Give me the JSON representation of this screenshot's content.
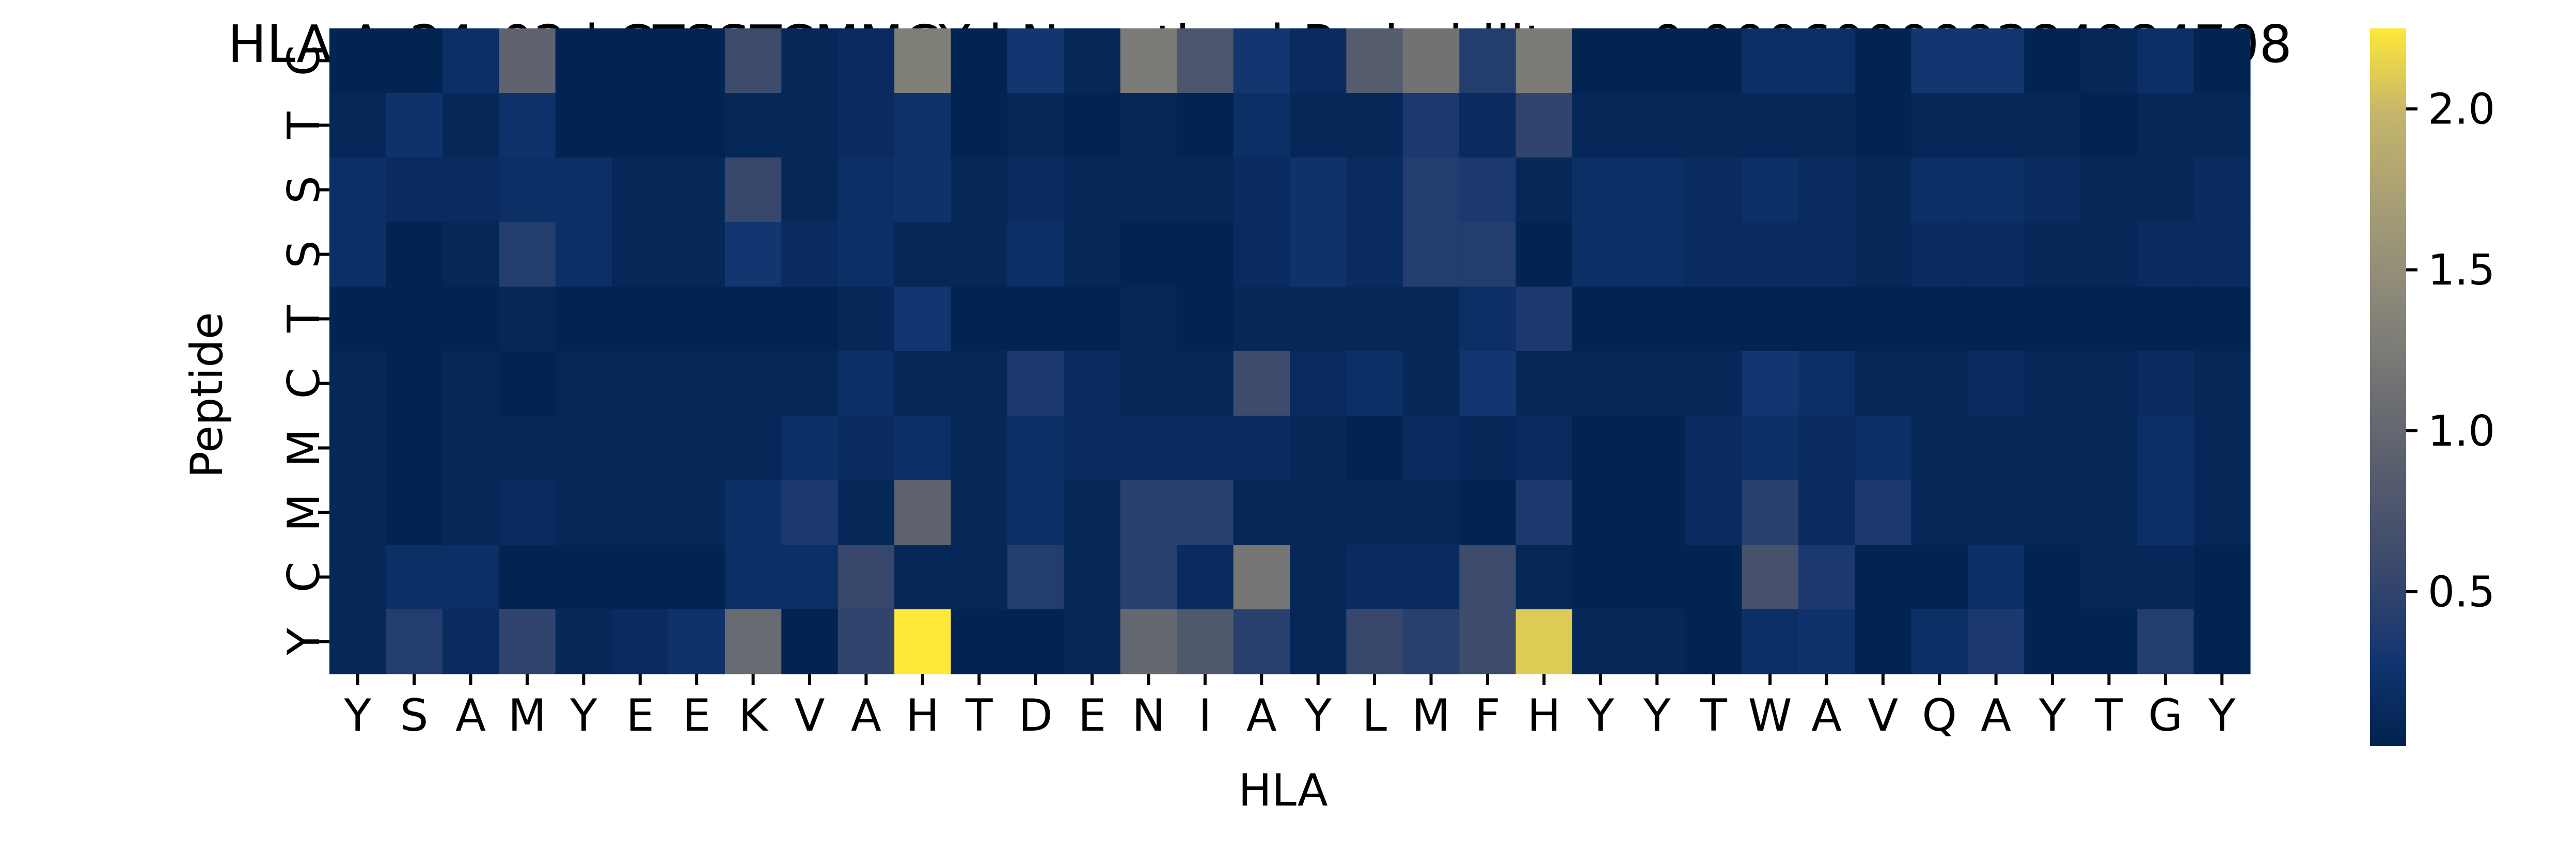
{
  "chart_data": {
    "type": "heatmap",
    "title": "HLA-A_24_02 | CTSSTCMMCY | Negative | Probability = 0.000600000284984708",
    "xlabel": "HLA",
    "ylabel": "Peptide",
    "x_categories": [
      "Y",
      "S",
      "A",
      "M",
      "Y",
      "E",
      "E",
      "K",
      "V",
      "A",
      "H",
      "T",
      "D",
      "E",
      "N",
      "I",
      "A",
      "Y",
      "L",
      "M",
      "F",
      "H",
      "Y",
      "Y",
      "T",
      "W",
      "A",
      "V",
      "Q",
      "A",
      "Y",
      "T",
      "G",
      "Y"
    ],
    "y_categories": [
      "C",
      "T",
      "S",
      "S",
      "T",
      "C",
      "M",
      "M",
      "C",
      "Y"
    ],
    "colorbar": {
      "colormap": "cividis",
      "range": [
        0.02,
        2.25
      ],
      "ticks": [
        0.5,
        1.0,
        1.5,
        2.0
      ],
      "tick_labels": [
        "0.5",
        "1.0",
        "1.5",
        "2.0"
      ]
    },
    "values": [
      [
        0.05,
        0.05,
        0.2,
        0.95,
        0.05,
        0.05,
        0.05,
        0.6,
        0.1,
        0.15,
        1.3,
        0.05,
        0.3,
        0.1,
        1.25,
        0.75,
        0.3,
        0.15,
        0.85,
        1.15,
        0.4,
        1.25,
        0.05,
        0.05,
        0.05,
        0.2,
        0.2,
        0.05,
        0.3,
        0.3,
        0.05,
        0.1,
        0.2,
        0.05
      ],
      [
        0.1,
        0.25,
        0.1,
        0.25,
        0.05,
        0.05,
        0.05,
        0.1,
        0.1,
        0.15,
        0.25,
        0.05,
        0.1,
        0.05,
        0.1,
        0.05,
        0.2,
        0.1,
        0.1,
        0.35,
        0.15,
        0.5,
        0.1,
        0.1,
        0.1,
        0.1,
        0.1,
        0.05,
        0.1,
        0.1,
        0.1,
        0.05,
        0.1,
        0.1
      ],
      [
        0.2,
        0.15,
        0.15,
        0.2,
        0.2,
        0.1,
        0.1,
        0.55,
        0.1,
        0.2,
        0.25,
        0.1,
        0.15,
        0.1,
        0.1,
        0.1,
        0.15,
        0.25,
        0.15,
        0.4,
        0.35,
        0.1,
        0.2,
        0.2,
        0.15,
        0.2,
        0.15,
        0.1,
        0.2,
        0.2,
        0.15,
        0.1,
        0.1,
        0.15
      ],
      [
        0.2,
        0.05,
        0.1,
        0.4,
        0.2,
        0.1,
        0.1,
        0.3,
        0.15,
        0.2,
        0.1,
        0.1,
        0.2,
        0.1,
        0.05,
        0.05,
        0.15,
        0.25,
        0.15,
        0.4,
        0.4,
        0.05,
        0.2,
        0.2,
        0.15,
        0.15,
        0.15,
        0.1,
        0.15,
        0.15,
        0.1,
        0.1,
        0.15,
        0.15
      ],
      [
        0.05,
        0.05,
        0.05,
        0.1,
        0.05,
        0.05,
        0.05,
        0.05,
        0.05,
        0.1,
        0.3,
        0.05,
        0.05,
        0.05,
        0.1,
        0.05,
        0.1,
        0.1,
        0.1,
        0.1,
        0.2,
        0.35,
        0.05,
        0.05,
        0.05,
        0.05,
        0.05,
        0.05,
        0.05,
        0.05,
        0.05,
        0.05,
        0.05,
        0.05
      ],
      [
        0.1,
        0.05,
        0.1,
        0.05,
        0.1,
        0.1,
        0.1,
        0.1,
        0.1,
        0.2,
        0.1,
        0.1,
        0.35,
        0.15,
        0.1,
        0.1,
        0.6,
        0.15,
        0.2,
        0.1,
        0.3,
        0.1,
        0.1,
        0.1,
        0.1,
        0.3,
        0.2,
        0.1,
        0.1,
        0.15,
        0.1,
        0.1,
        0.15,
        0.1
      ],
      [
        0.1,
        0.05,
        0.1,
        0.1,
        0.1,
        0.1,
        0.1,
        0.1,
        0.2,
        0.15,
        0.2,
        0.1,
        0.2,
        0.15,
        0.15,
        0.15,
        0.15,
        0.1,
        0.05,
        0.15,
        0.1,
        0.15,
        0.05,
        0.05,
        0.15,
        0.2,
        0.15,
        0.2,
        0.1,
        0.1,
        0.1,
        0.1,
        0.2,
        0.1
      ],
      [
        0.1,
        0.05,
        0.1,
        0.15,
        0.1,
        0.1,
        0.1,
        0.2,
        0.35,
        0.1,
        0.95,
        0.1,
        0.2,
        0.1,
        0.45,
        0.45,
        0.1,
        0.1,
        0.1,
        0.1,
        0.05,
        0.35,
        0.05,
        0.05,
        0.15,
        0.45,
        0.15,
        0.35,
        0.1,
        0.1,
        0.1,
        0.1,
        0.2,
        0.1
      ],
      [
        0.1,
        0.2,
        0.2,
        0.05,
        0.05,
        0.05,
        0.05,
        0.2,
        0.2,
        0.55,
        0.1,
        0.1,
        0.4,
        0.1,
        0.45,
        0.15,
        1.2,
        0.1,
        0.15,
        0.15,
        0.6,
        0.1,
        0.05,
        0.05,
        0.05,
        0.7,
        0.35,
        0.05,
        0.05,
        0.2,
        0.05,
        0.1,
        0.1,
        0.05
      ],
      [
        0.1,
        0.4,
        0.15,
        0.5,
        0.1,
        0.15,
        0.25,
        1.05,
        0.05,
        0.5,
        2.25,
        0.05,
        0.05,
        0.1,
        1.0,
        0.8,
        0.45,
        0.1,
        0.55,
        0.45,
        0.6,
        2.1,
        0.1,
        0.1,
        0.05,
        0.2,
        0.25,
        0.05,
        0.2,
        0.35,
        0.05,
        0.05,
        0.4,
        0.05
      ]
    ]
  }
}
